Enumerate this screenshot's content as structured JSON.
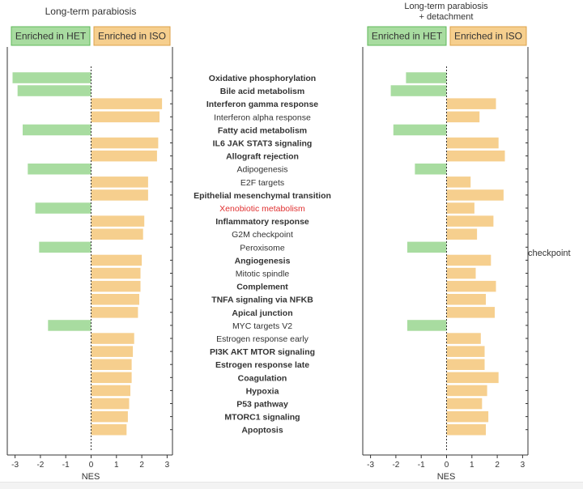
{
  "colors": {
    "het_fill": "#a8dca0",
    "het_stroke": "#5fb85a",
    "iso_fill": "#f6cf8e",
    "iso_stroke": "#dca24a",
    "highlight_text": "#e03030",
    "axis": "#333333"
  },
  "panel_left": {
    "title": "Long-term parabiosis",
    "legend_het": "Enriched in HET",
    "legend_iso": "Enriched in ISO",
    "xlabel": "NES"
  },
  "panel_right": {
    "title_line1": "Long-term parabiosis",
    "title_line2": "+ detachment",
    "legend_het": "Enriched in HET",
    "legend_iso": "Enriched in ISO",
    "xlabel": "NES"
  },
  "side_note": "checkpoint",
  "chart_data": [
    {
      "type": "bar",
      "orientation": "horizontal",
      "title": "Long-term parabiosis",
      "xlabel": "NES",
      "xlim": [
        -3.2,
        3.2
      ],
      "xticks": [
        "-3",
        "-2",
        "-1",
        "0",
        "1",
        "2",
        "3"
      ],
      "legend": [
        "Enriched in HET",
        "Enriched in ISO"
      ],
      "categories": [
        "Oxidative phosphorylation",
        "Bile acid metabolism",
        "Interferon gamma response",
        "Interferon alpha response",
        "Fatty acid metabolism",
        "IL6 JAK STAT3 signaling",
        "Allograft rejection",
        "Adipogenesis",
        "E2F targets",
        "Epithelial mesenchymal transition",
        "Xenobiotic metabolism",
        "Inflammatory response",
        "G2M checkpoint",
        "Peroxisome",
        "Angiogenesis",
        "Mitotic spindle",
        "Complement",
        "TNFA signaling via NFKB",
        "Apical junction",
        "MYC targets V2",
        "Estrogen response early",
        "PI3K AKT MTOR signaling",
        "Estrogen response late",
        "Coagulation",
        "Hypoxia",
        "P53 pathway",
        "MTORC1 signaling",
        "Apoptosis"
      ],
      "values": [
        -3.1,
        -2.9,
        2.8,
        2.7,
        -2.7,
        2.65,
        2.6,
        -2.5,
        2.25,
        2.25,
        -2.2,
        2.1,
        2.05,
        -2.05,
        2.0,
        1.95,
        1.95,
        1.9,
        1.85,
        -1.7,
        1.7,
        1.65,
        1.6,
        1.6,
        1.55,
        1.5,
        1.45,
        1.4
      ]
    },
    {
      "type": "bar",
      "orientation": "horizontal",
      "title": "Long-term parabiosis + detachment",
      "xlabel": "NES",
      "xlim": [
        -3.2,
        3.2
      ],
      "xticks": [
        "-3",
        "-2",
        "-1",
        "0",
        "1",
        "2",
        "3"
      ],
      "legend": [
        "Enriched in HET",
        "Enriched in ISO"
      ],
      "categories": [
        "Oxidative phosphorylation",
        "Bile acid metabolism",
        "Interferon gamma response",
        "Interferon alpha response",
        "Fatty acid metabolism",
        "IL6 JAK STAT3 signaling",
        "Allograft rejection",
        "Adipogenesis",
        "E2F targets",
        "Epithelial mesenchymal transition",
        "Xenobiotic metabolism",
        "Inflammatory response",
        "G2M checkpoint",
        "Peroxisome",
        "Angiogenesis",
        "Mitotic spindle",
        "Complement",
        "TNFA signaling via NFKB",
        "Apical junction",
        "MYC targets V2",
        "Estrogen response early",
        "PI3K AKT MTOR signaling",
        "Estrogen response late",
        "Coagulation",
        "Hypoxia",
        "P53 pathway",
        "MTORC1 signaling",
        "Apoptosis"
      ],
      "values": [
        -1.6,
        -2.2,
        1.95,
        1.3,
        -2.1,
        2.05,
        2.3,
        -1.25,
        0.95,
        2.25,
        1.1,
        1.85,
        1.2,
        -1.55,
        1.75,
        1.15,
        1.95,
        1.55,
        1.9,
        -1.55,
        1.35,
        1.5,
        1.5,
        2.05,
        1.6,
        1.4,
        1.65,
        1.55
      ]
    }
  ],
  "labels": [
    {
      "text": "Oxidative phosphorylation",
      "bold": true,
      "highlight": false
    },
    {
      "text": "Bile acid metabolism",
      "bold": true,
      "highlight": false
    },
    {
      "text": "Interferon gamma response",
      "bold": true,
      "highlight": false
    },
    {
      "text": "Interferon alpha response",
      "bold": false,
      "highlight": false
    },
    {
      "text": "Fatty acid metabolism",
      "bold": true,
      "highlight": false
    },
    {
      "text": "IL6 JAK STAT3 signaling",
      "bold": true,
      "highlight": false
    },
    {
      "text": "Allograft rejection",
      "bold": true,
      "highlight": false
    },
    {
      "text": "Adipogenesis",
      "bold": false,
      "highlight": false
    },
    {
      "text": "E2F targets",
      "bold": false,
      "highlight": false
    },
    {
      "text": "Epithelial mesenchymal transition",
      "bold": true,
      "highlight": false
    },
    {
      "text": "Xenobiotic metabolism",
      "bold": false,
      "highlight": true
    },
    {
      "text": "Inflammatory response",
      "bold": true,
      "highlight": false
    },
    {
      "text": "G2M checkpoint",
      "bold": false,
      "highlight": false
    },
    {
      "text": "Peroxisome",
      "bold": false,
      "highlight": false
    },
    {
      "text": "Angiogenesis",
      "bold": true,
      "highlight": false
    },
    {
      "text": "Mitotic spindle",
      "bold": false,
      "highlight": false
    },
    {
      "text": "Complement",
      "bold": true,
      "highlight": false
    },
    {
      "text": "TNFA signaling via NFKB",
      "bold": true,
      "highlight": false
    },
    {
      "text": "Apical junction",
      "bold": true,
      "highlight": false
    },
    {
      "text": "MYC targets V2",
      "bold": false,
      "highlight": false
    },
    {
      "text": "Estrogen response early",
      "bold": false,
      "highlight": false
    },
    {
      "text": "PI3K AKT MTOR signaling",
      "bold": true,
      "highlight": false
    },
    {
      "text": "Estrogen response late",
      "bold": true,
      "highlight": false
    },
    {
      "text": "Coagulation",
      "bold": true,
      "highlight": false
    },
    {
      "text": "Hypoxia",
      "bold": true,
      "highlight": false
    },
    {
      "text": "P53 pathway",
      "bold": true,
      "highlight": false
    },
    {
      "text": "MTORC1 signaling",
      "bold": true,
      "highlight": false
    },
    {
      "text": "Apoptosis",
      "bold": true,
      "highlight": false
    }
  ]
}
